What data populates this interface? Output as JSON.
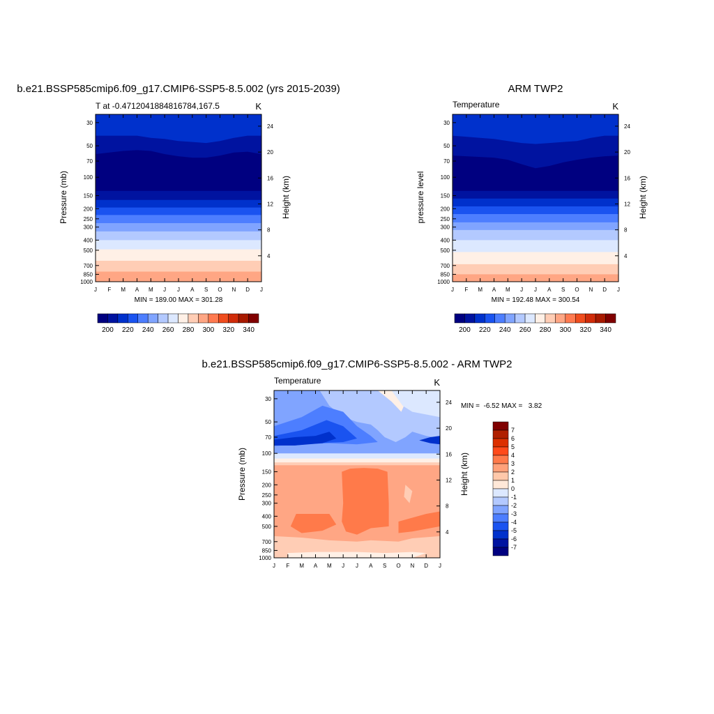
{
  "months": [
    "J",
    "F",
    "M",
    "A",
    "M",
    "J",
    "J",
    "A",
    "S",
    "O",
    "N",
    "D",
    "J"
  ],
  "pressure_ticks": [
    30,
    50,
    70,
    100,
    150,
    200,
    250,
    300,
    400,
    500,
    700,
    850,
    1000
  ],
  "height_ticks": [
    4,
    8,
    12,
    16,
    20,
    24
  ],
  "panels": {
    "model": {
      "title": "b.e21.BSSP585cmip6.f09_g17.CMIP6-SSP5-8.5.002 (yrs 2015-2039)",
      "left_label": "T at -0.4712041884816784,167.5",
      "units": "K",
      "ylabel_left": "Pressure (mb)",
      "ylabel_right": "Height (km)",
      "minmax": "MIN = 189.00 MAX = 301.28"
    },
    "obs": {
      "title": "ARM TWP2",
      "left_label": "Temperature",
      "units": "K",
      "ylabel_left": "pressure level",
      "ylabel_right": "Height (km)",
      "minmax": "MIN = 192.48 MAX = 300.54"
    },
    "diff": {
      "title": "b.e21.BSSP585cmip6.f09_g17.CMIP6-SSP5-8.5.002 - ARM TWP2",
      "left_label": "Temperature",
      "units": "K",
      "ylabel_left": "Pressure (mb)",
      "ylabel_right": "Height (km)",
      "minmax": "MIN =  -6.52 MAX =   3.82"
    }
  },
  "colorbar_abs": {
    "labels": [
      "200",
      "220",
      "240",
      "260",
      "280",
      "300",
      "320",
      "340"
    ],
    "colors": [
      "#000080",
      "#0013a0",
      "#0031cc",
      "#1a53f0",
      "#4d7eff",
      "#80a4ff",
      "#b3c9ff",
      "#dce8ff",
      "#fff0e6",
      "#ffcdb5",
      "#ffa684",
      "#ff7a50",
      "#f04d1e",
      "#d02c0a",
      "#a81a00",
      "#800000"
    ]
  },
  "colorbar_diff": {
    "labels": [
      "7",
      "6",
      "5",
      "4",
      "3",
      "2",
      "1",
      "0",
      "-1",
      "-2",
      "-3",
      "-4",
      "-5",
      "-6",
      "-7"
    ],
    "colors": [
      "#800000",
      "#b02000",
      "#dc3000",
      "#ff4a1a",
      "#ff7a4a",
      "#ffa17a",
      "#ffc8aa",
      "#ffe8d8",
      "#dce8ff",
      "#b3c9ff",
      "#80a4ff",
      "#4d7eff",
      "#1a53f0",
      "#0031cc",
      "#0013a0",
      "#000080"
    ]
  },
  "chart_data": [
    {
      "type": "heatmap",
      "title": "b.e21.BSSP585cmip6.f09_g17.CMIP6-SSP5-8.5.002 (yrs 2015-2039)",
      "variable": "T at -0.4712041884816784,167.5",
      "units": "K",
      "xlabel": "",
      "ylabel": "Pressure (mb)",
      "y2label": "Height (km)",
      "x": [
        "J",
        "F",
        "M",
        "A",
        "M",
        "J",
        "J",
        "A",
        "S",
        "O",
        "N",
        "D",
        "J"
      ],
      "y_pressure": [
        30,
        50,
        70,
        100,
        150,
        200,
        250,
        300,
        400,
        500,
        700,
        850,
        1000
      ],
      "y_scale": "log",
      "contour_interval": 10,
      "levels_boundaries_mb": [
        [
          40,
          40,
          40,
          40,
          42,
          43,
          45,
          46,
          47,
          45,
          42,
          40,
          40
        ],
        [
          60,
          58,
          56,
          55,
          56,
          60,
          63,
          65,
          65,
          62,
          58,
          57,
          60
        ],
        [
          135,
          135,
          135,
          135,
          135,
          135,
          135,
          135,
          135,
          135,
          135,
          135,
          135
        ],
        [
          165,
          165,
          165,
          165,
          165,
          165,
          165,
          165,
          165,
          165,
          165,
          165,
          165
        ],
        [
          195,
          195,
          195,
          195,
          195,
          195,
          195,
          195,
          195,
          195,
          195,
          195,
          195
        ],
        [
          230,
          230,
          230,
          230,
          230,
          230,
          230,
          230,
          230,
          230,
          230,
          230,
          230
        ],
        [
          275,
          275,
          275,
          275,
          275,
          275,
          275,
          275,
          275,
          275,
          275,
          275,
          275
        ],
        [
          330,
          330,
          330,
          330,
          330,
          330,
          330,
          330,
          330,
          330,
          330,
          330,
          330
        ],
        [
          400,
          400,
          400,
          400,
          400,
          400,
          400,
          400,
          400,
          400,
          400,
          400,
          400
        ],
        [
          490,
          490,
          490,
          490,
          490,
          490,
          490,
          490,
          490,
          490,
          490,
          490,
          490
        ],
        [
          630,
          630,
          630,
          630,
          630,
          630,
          630,
          630,
          630,
          630,
          630,
          630,
          630
        ],
        [
          800,
          800,
          800,
          800,
          800,
          800,
          800,
          800,
          800,
          800,
          800,
          800,
          800
        ]
      ],
      "band_colors": [
        "#0031cc",
        "#0013a0",
        "#000080",
        "#0013a0",
        "#0031cc",
        "#1a53f0",
        "#4d7eff",
        "#80a4ff",
        "#b3c9ff",
        "#dce8ff",
        "#fff0e6",
        "#ffcdb5",
        "#ffa684"
      ],
      "min": 189.0,
      "max": 301.28
    },
    {
      "type": "heatmap",
      "title": "ARM TWP2",
      "variable": "Temperature",
      "units": "K",
      "xlabel": "",
      "ylabel": "pressure level",
      "y2label": "Height (km)",
      "x": [
        "J",
        "F",
        "M",
        "A",
        "M",
        "J",
        "J",
        "A",
        "S",
        "O",
        "N",
        "D",
        "J"
      ],
      "y_pressure": [
        30,
        50,
        70,
        100,
        150,
        200,
        250,
        300,
        400,
        500,
        700,
        850,
        1000
      ],
      "y_scale": "log",
      "contour_interval": 10,
      "levels_boundaries_mb": [
        [
          40,
          41,
          42,
          43,
          45,
          47,
          48,
          47,
          46,
          45,
          42,
          40,
          40
        ],
        [
          62,
          63,
          64,
          65,
          68,
          75,
          82,
          78,
          72,
          68,
          65,
          63,
          62
        ],
        [
          135,
          135,
          135,
          135,
          135,
          135,
          135,
          135,
          135,
          135,
          135,
          135,
          135
        ],
        [
          160,
          160,
          160,
          160,
          160,
          160,
          160,
          160,
          160,
          160,
          160,
          160,
          160
        ],
        [
          190,
          190,
          190,
          190,
          190,
          190,
          190,
          190,
          190,
          190,
          190,
          190,
          190
        ],
        [
          225,
          225,
          225,
          225,
          225,
          225,
          225,
          225,
          225,
          225,
          225,
          225,
          225
        ],
        [
          270,
          270,
          270,
          270,
          270,
          270,
          270,
          270,
          270,
          270,
          270,
          270,
          270
        ],
        [
          320,
          320,
          320,
          320,
          320,
          320,
          320,
          320,
          320,
          320,
          320,
          320,
          320
        ],
        [
          400,
          400,
          400,
          400,
          400,
          400,
          400,
          400,
          400,
          400,
          400,
          400,
          400
        ],
        [
          520,
          520,
          520,
          520,
          520,
          520,
          520,
          520,
          520,
          520,
          520,
          520,
          520
        ],
        [
          680,
          680,
          680,
          680,
          680,
          680,
          680,
          680,
          680,
          680,
          680,
          680,
          680
        ],
        [
          850,
          850,
          850,
          850,
          850,
          850,
          850,
          850,
          850,
          850,
          850,
          850,
          850
        ]
      ],
      "band_colors": [
        "#0031cc",
        "#0013a0",
        "#000080",
        "#0013a0",
        "#0031cc",
        "#1a53f0",
        "#4d7eff",
        "#80a4ff",
        "#b3c9ff",
        "#dce8ff",
        "#fff0e6",
        "#ffcdb5",
        "#ffa684"
      ],
      "min": 192.48,
      "max": 300.54
    },
    {
      "type": "heatmap",
      "title": "b.e21.BSSP585cmip6.f09_g17.CMIP6-SSP5-8.5.002 - ARM TWP2",
      "variable": "Temperature",
      "units": "K",
      "ylabel": "Pressure (mb)",
      "y2label": "Height (km)",
      "x": [
        "J",
        "F",
        "M",
        "A",
        "M",
        "J",
        "J",
        "A",
        "S",
        "O",
        "N",
        "D",
        "J"
      ],
      "y_pressure": [
        30,
        50,
        70,
        100,
        150,
        200,
        250,
        300,
        400,
        500,
        700,
        850,
        1000
      ],
      "y_scale": "log",
      "contour_interval": 1,
      "regions": [
        {
          "value": -2.5,
          "p_range": [
            25,
            50
          ]
        },
        {
          "value": -4.5,
          "p_range": [
            50,
            80
          ]
        },
        {
          "value": -5.5,
          "p_range": [
            70,
            85
          ]
        },
        {
          "value": -1.5,
          "p_range": [
            85,
            110
          ]
        },
        {
          "value": 0.5,
          "p_range": [
            110,
            125
          ]
        },
        {
          "value": 2.5,
          "p_range": [
            125,
            1000
          ]
        },
        {
          "value": 3.5,
          "p_range": [
            150,
            550
          ]
        },
        {
          "value": 1.5,
          "p_range": [
            650,
            1000
          ]
        }
      ],
      "min": -6.52,
      "max": 3.82
    }
  ]
}
